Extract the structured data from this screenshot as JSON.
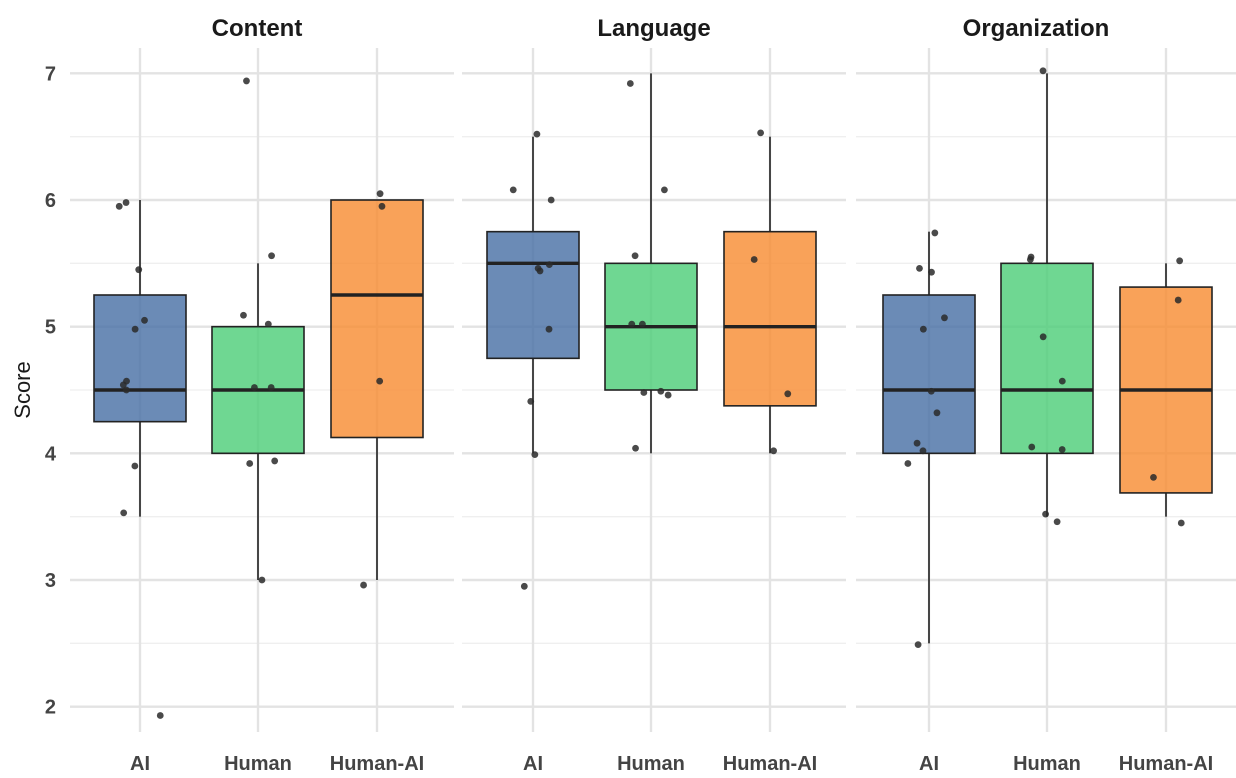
{
  "chart_data": {
    "type": "boxplot",
    "ylabel": "Score",
    "ylim": [
      1.8,
      7.2
    ],
    "yticks": [
      2,
      3,
      4,
      5,
      6,
      7
    ],
    "categories": [
      "AI",
      "Human",
      "Human-AI"
    ],
    "colors": {
      "AI": "#4a72a6",
      "Human": "#4fce7a",
      "Human-AI": "#f88d35"
    },
    "grid": true,
    "legend": "none",
    "panels": [
      {
        "title": "Content",
        "groups": [
          {
            "name": "AI",
            "whisker_low": 3.5,
            "q1": 4.25,
            "median": 4.5,
            "q3": 5.25,
            "whisker_high": 6.0,
            "points": [
              5.98,
              5.95,
              5.45,
              5.05,
              4.98,
              4.57,
              4.54,
              4.5,
              3.9,
              3.53,
              1.93
            ]
          },
          {
            "name": "Human",
            "whisker_low": 3.0,
            "q1": 4.0,
            "median": 4.5,
            "q3": 5.0,
            "whisker_high": 5.5,
            "points": [
              6.94,
              5.56,
              5.09,
              5.02,
              4.52,
              4.52,
              3.94,
              3.92,
              3.0
            ]
          },
          {
            "name": "Human-AI",
            "whisker_low": 3.0,
            "q1": 4.125,
            "median": 5.25,
            "q3": 6.0,
            "whisker_high": 6.0,
            "points": [
              6.05,
              5.95,
              4.57,
              2.96
            ]
          }
        ]
      },
      {
        "title": "Language",
        "groups": [
          {
            "name": "AI",
            "whisker_low": 4.0,
            "q1": 4.75,
            "median": 5.5,
            "q3": 5.75,
            "whisker_high": 6.5,
            "points": [
              6.52,
              6.08,
              6.0,
              5.49,
              5.46,
              5.44,
              4.98,
              4.41,
              3.99,
              2.95
            ]
          },
          {
            "name": "Human",
            "whisker_low": 4.0,
            "q1": 4.5,
            "median": 5.0,
            "q3": 5.5,
            "whisker_high": 7.0,
            "points": [
              6.92,
              6.08,
              5.56,
              5.02,
              5.02,
              4.49,
              4.48,
              4.46,
              4.04
            ]
          },
          {
            "name": "Human-AI",
            "whisker_low": 4.0,
            "q1": 4.375,
            "median": 5.0,
            "q3": 5.75,
            "whisker_high": 6.5,
            "points": [
              6.53,
              5.53,
              4.47,
              4.02
            ]
          }
        ]
      },
      {
        "title": "Organization",
        "groups": [
          {
            "name": "AI",
            "whisker_low": 2.5,
            "q1": 4.0,
            "median": 4.5,
            "q3": 5.25,
            "whisker_high": 5.75,
            "points": [
              5.74,
              5.46,
              5.43,
              5.07,
              4.98,
              4.49,
              4.32,
              4.08,
              4.02,
              3.92,
              2.49
            ]
          },
          {
            "name": "Human",
            "whisker_low": 3.5,
            "q1": 4.0,
            "median": 4.5,
            "q3": 5.5,
            "whisker_high": 7.0,
            "points": [
              7.02,
              5.55,
              5.53,
              4.92,
              4.57,
              4.05,
              4.03,
              3.52,
              3.46
            ]
          },
          {
            "name": "Human-AI",
            "whisker_low": 3.5,
            "q1": 3.6875,
            "median": 4.5,
            "q3": 5.3125,
            "whisker_high": 5.5,
            "points": [
              5.52,
              5.21,
              3.81,
              3.45
            ]
          }
        ]
      }
    ]
  }
}
